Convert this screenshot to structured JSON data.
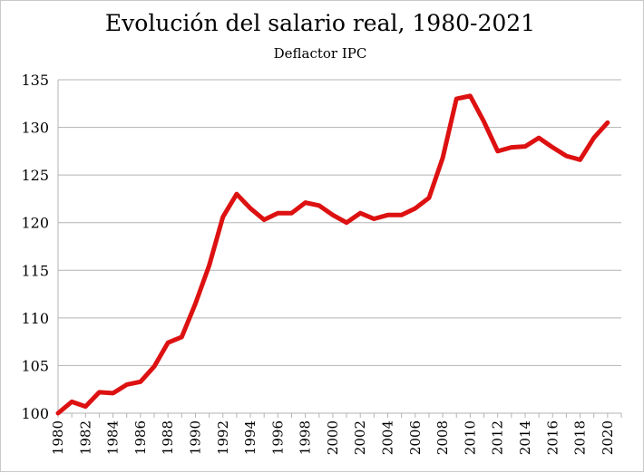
{
  "chart_data": {
    "type": "line",
    "title": "Evolución del salario real, 1980-2021",
    "subtitle": "Deflactor IPC",
    "xlabel": "",
    "ylabel": "",
    "xlim": [
      1980,
      2021
    ],
    "ylim": [
      100,
      135
    ],
    "y_ticks": [
      "100",
      "105",
      "110",
      "115",
      "120",
      "125",
      "130",
      "135"
    ],
    "x_ticks": [
      "1980",
      "1982",
      "1984",
      "1986",
      "1988",
      "1990",
      "1992",
      "1994",
      "1996",
      "1998",
      "2000",
      "2002",
      "2004",
      "2006",
      "2008",
      "2010",
      "2012",
      "2014",
      "2016",
      "2018",
      "2020"
    ],
    "grid": "horizontal",
    "legend": "none",
    "series": [
      {
        "color": "#dd1111",
        "x": [
          1980,
          1981,
          1982,
          1983,
          1984,
          1985,
          1986,
          1987,
          1988,
          1989,
          1990,
          1991,
          1992,
          1993,
          1994,
          1995,
          1996,
          1997,
          1998,
          1999,
          2000,
          2001,
          2002,
          2003,
          2004,
          2005,
          2006,
          2007,
          2008,
          2009,
          2010,
          2011,
          2012,
          2013,
          2014,
          2015,
          2016,
          2017,
          2018,
          2019,
          2020
        ],
        "values": [
          100.0,
          101.2,
          100.7,
          102.2,
          102.1,
          103.0,
          103.3,
          104.9,
          107.4,
          108.0,
          111.5,
          115.5,
          120.6,
          123.0,
          121.5,
          120.3,
          121.0,
          121.0,
          122.1,
          121.8,
          120.8,
          120.0,
          121.0,
          120.4,
          120.8,
          120.8,
          121.5,
          122.6,
          126.8,
          133.0,
          133.3,
          130.6,
          127.5,
          127.9,
          128.0,
          128.9,
          127.9,
          127.0,
          126.6,
          128.9,
          130.5
        ]
      }
    ]
  }
}
